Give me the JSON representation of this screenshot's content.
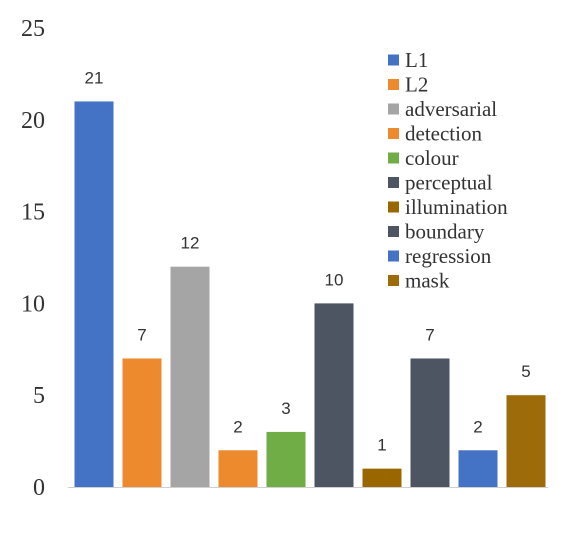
{
  "chart_data": {
    "type": "bar",
    "title": "",
    "xlabel": "",
    "ylabel": "",
    "ylim": [
      0,
      25
    ],
    "yticks": [
      "0",
      "5",
      "10",
      "15",
      "20",
      "25"
    ],
    "categories": [
      "L1",
      "L2",
      "adversarial",
      "detection",
      "colour",
      "perceptual",
      "illumination",
      "boundary",
      "regression",
      "mask"
    ],
    "values": [
      21,
      7,
      12,
      2,
      3,
      10,
      1,
      7,
      2,
      5
    ],
    "colors": [
      "#4472C4",
      "#ED8A2E",
      "#A5A5A5",
      "#ED8A2E",
      "#70AD47",
      "#4D5562",
      "#996600",
      "#4D5562",
      "#4472C4",
      "#9E6B0A"
    ],
    "legend_position": "top-right",
    "grid": false
  }
}
